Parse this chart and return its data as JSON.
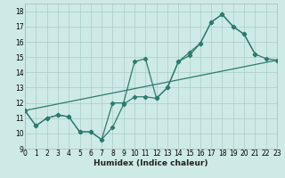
{
  "series": [
    {
      "x": [
        0,
        1,
        2,
        3,
        4,
        5,
        6,
        7,
        8,
        9,
        10,
        11,
        12,
        13,
        14,
        15,
        16,
        17,
        18,
        19,
        20,
        21
      ],
      "y": [
        11.5,
        10.5,
        11.0,
        11.2,
        11.1,
        10.1,
        10.1,
        9.6,
        12.0,
        12.0,
        14.7,
        14.9,
        12.3,
        13.0,
        14.7,
        15.1,
        15.9,
        17.3,
        17.8,
        17.0,
        16.5,
        15.2
      ]
    },
    {
      "x": [
        0,
        1,
        2,
        3,
        4,
        5,
        6,
        7,
        8,
        9,
        10,
        11,
        12,
        13,
        14,
        15,
        16,
        17,
        18,
        19,
        20,
        21,
        22,
        23
      ],
      "y": [
        11.5,
        10.5,
        11.0,
        11.2,
        11.1,
        10.1,
        10.1,
        9.6,
        10.4,
        11.9,
        12.4,
        12.4,
        12.3,
        13.0,
        14.7,
        15.3,
        15.9,
        17.3,
        17.8,
        17.0,
        16.5,
        15.2,
        14.9,
        14.8
      ]
    },
    {
      "x": [
        0,
        23
      ],
      "y": [
        11.5,
        14.8
      ]
    }
  ],
  "color": "#2d7b6e",
  "bg_color": "#ceeae6",
  "grid_major_color": "#aaccc8",
  "grid_minor_color": "#bddeda",
  "xlabel": "Humidex (Indice chaleur)",
  "xlim": [
    0,
    23
  ],
  "ylim": [
    9,
    18.5
  ],
  "xticks": [
    0,
    1,
    2,
    3,
    4,
    5,
    6,
    7,
    8,
    9,
    10,
    11,
    12,
    13,
    14,
    15,
    16,
    17,
    18,
    19,
    20,
    21,
    22,
    23
  ],
  "yticks": [
    9,
    10,
    11,
    12,
    13,
    14,
    15,
    16,
    17,
    18
  ],
  "fontsize": 5.5,
  "xlabel_fontsize": 6.5,
  "linewidth": 0.9,
  "markersize": 2.2,
  "marker": "D"
}
